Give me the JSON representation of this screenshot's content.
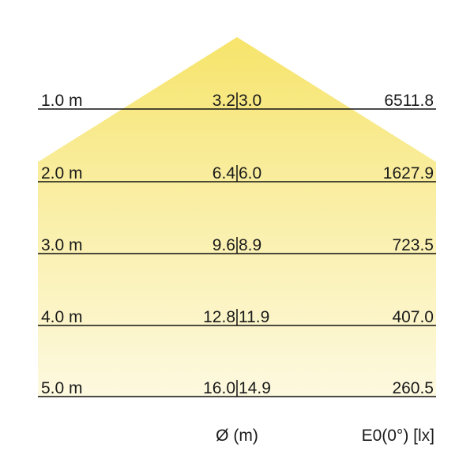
{
  "colors": {
    "cone_top": "#f6e46a",
    "cone_bottom": "#fdf9e0",
    "line": "#111111"
  },
  "rows": [
    {
      "distance": "1.0 m",
      "diam_a": "3.2",
      "diam_b": "3.0",
      "illuminance": "6511.8"
    },
    {
      "distance": "2.0 m",
      "diam_a": "6.4",
      "diam_b": "6.0",
      "illuminance": "1627.9"
    },
    {
      "distance": "3.0 m",
      "diam_a": "9.6",
      "diam_b": "8.9",
      "illuminance": "723.5"
    },
    {
      "distance": "4.0 m",
      "diam_a": "12.8",
      "diam_b": "11.9",
      "illuminance": "407.0"
    },
    {
      "distance": "5.0 m",
      "diam_a": "16.0",
      "diam_b": "14.9",
      "illuminance": "260.5"
    }
  ],
  "footer": {
    "diameter_label": "Ø (m)",
    "illuminance_label": "E0(0°) [lx]"
  }
}
